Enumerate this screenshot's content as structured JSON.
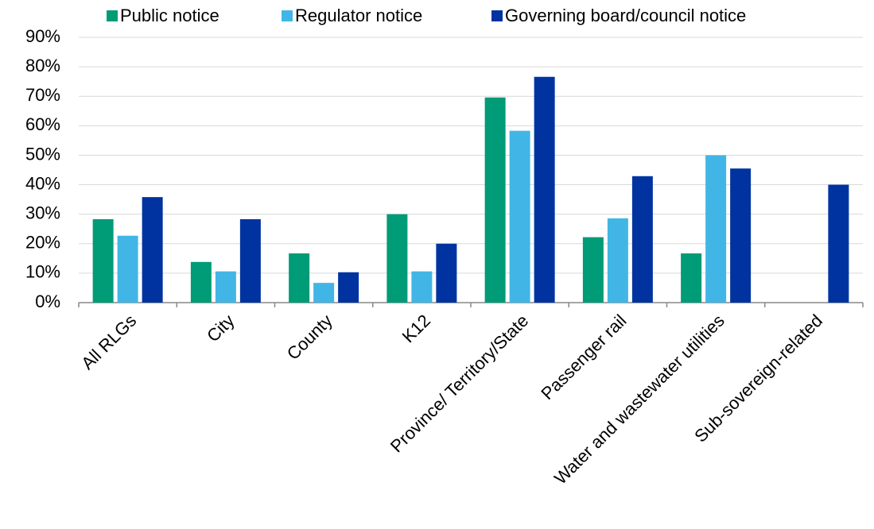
{
  "chart_data": {
    "type": "bar",
    "categories": [
      "All RLGs",
      "City",
      "County",
      "K12",
      "Province/ Territory/State",
      "Passenger rail",
      "Water and wastewater utilities",
      "Sub-sovereign-related"
    ],
    "series": [
      {
        "name": "Public notice",
        "color": "#009b77",
        "values": [
          28.3,
          13.8,
          16.7,
          30,
          69.6,
          22.2,
          16.7,
          0
        ]
      },
      {
        "name": "Regulator notice",
        "color": "#41b6e6",
        "values": [
          22.7,
          10.6,
          6.7,
          10.6,
          58.3,
          28.6,
          50,
          0
        ]
      },
      {
        "name": "Governing board/council notice",
        "color": "#0033a0",
        "values": [
          35.8,
          28.3,
          10.3,
          20,
          76.6,
          42.9,
          45.5,
          40
        ]
      }
    ],
    "ylim": [
      0,
      90
    ],
    "yticks": [
      {
        "value": 0,
        "label": "0%"
      },
      {
        "value": 10,
        "label": "10%"
      },
      {
        "value": 20,
        "label": "20%"
      },
      {
        "value": 30,
        "label": "30%"
      },
      {
        "value": 40,
        "label": "40%"
      },
      {
        "value": 50,
        "label": "50%"
      },
      {
        "value": 60,
        "label": "60%"
      },
      {
        "value": 70,
        "label": "70%"
      },
      {
        "value": 80,
        "label": "80%"
      },
      {
        "value": 90,
        "label": "90%"
      }
    ],
    "grid": true,
    "legend": "top"
  }
}
